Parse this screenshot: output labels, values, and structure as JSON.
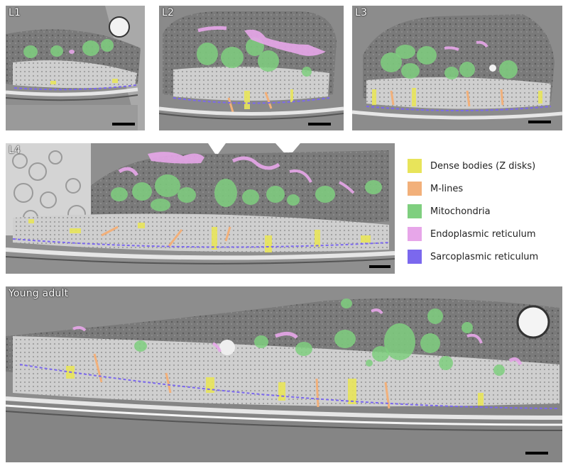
{
  "panels": {
    "l1": {
      "label": "L1"
    },
    "l2": {
      "label": "L2"
    },
    "l3": {
      "label": "L3"
    },
    "l4": {
      "label": "L4"
    },
    "young_adult": {
      "label": "Young adult"
    }
  },
  "legend": {
    "items": [
      {
        "label": "Dense bodies (Z disks)",
        "color": "#e8e45a"
      },
      {
        "label": "M-lines",
        "color": "#f2b07a"
      },
      {
        "label": "Mitochondria",
        "color": "#7fcf7f"
      },
      {
        "label": "Endoplasmic reticulum",
        "color": "#e7a6e9"
      },
      {
        "label": "Sarcoplasmic reticulum",
        "color": "#7b68ee"
      }
    ]
  }
}
